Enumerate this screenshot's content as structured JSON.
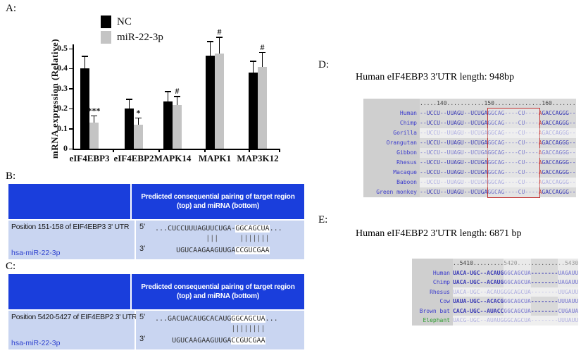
{
  "colors": {
    "table_header_blue": "#1a3edc",
    "table_body_blue": "#c9d5f1",
    "mir_link_blue": "#3144cf",
    "seq_blue": "#3b3bb5",
    "seq_red": "#c43333",
    "species_name_blue": "#3c3ccc",
    "elephant_green": "#2f9e2f",
    "bar_black": "#000000",
    "bar_gray": "#c4c4c4",
    "align_name_bg": "#cfcfcf",
    "align_seq_bg": "#d9d9d9"
  },
  "chart_data": {
    "type": "bar",
    "title": "",
    "xlabel": "",
    "ylabel": "mRNA expression (Relative)",
    "ylim": [
      0,
      0.5
    ],
    "yticks": [
      0,
      0.1,
      0.2,
      0.3,
      0.4,
      0.5
    ],
    "grid": false,
    "legend_position": "top-left-inside",
    "categories": [
      "eIF4EBP3",
      "eIF4EBP2",
      "MAPK14",
      "MAPK1",
      "MAP3K12"
    ],
    "series": [
      {
        "name": "NC",
        "color": "#000000",
        "values": [
          0.4,
          0.2,
          0.235,
          0.465,
          0.38
        ],
        "errors": [
          0.06,
          0.045,
          0.05,
          0.07,
          0.055
        ]
      },
      {
        "name": "miR-22-3p",
        "color": "#c4c4c4",
        "values": [
          0.13,
          0.12,
          0.22,
          0.475,
          0.41
        ],
        "errors": [
          0.032,
          0.033,
          0.04,
          0.08,
          0.07
        ]
      }
    ],
    "annotations": [
      "***",
      "*",
      "#",
      "#",
      "#"
    ]
  },
  "panelA": {
    "label": "A:"
  },
  "panelB": {
    "label": "B:",
    "header_line1": "Predicted consequential pairing of target region",
    "header_line2": "(top) and miRNA (bottom)",
    "row1": {
      "label": "Position 151-158 of EIF4EBP3 3' UTR",
      "prime": "5'",
      "seq_pre": "...CUCCUUUAGUUCUGA-",
      "seq_hl": "GGCAGCUA",
      "seq_post": "..."
    },
    "bars": "            |||     |||||||",
    "row2": {
      "label": "hsa-miR-22-3p",
      "prime": "3'",
      "seq_pre": "     UGUCAAGAAGUUGA",
      "seq_hl": "CCGUCGAA",
      "seq_post": ""
    }
  },
  "panelC": {
    "label": "C:",
    "header_line1": "Predicted consequential pairing of target region",
    "header_line2": "(top) and miRNA (bottom)",
    "row1": {
      "label": "Position 5420-5427 of EIF4EBP2 3' UTR",
      "prime": "5'",
      "seq_pre": "...GACUACAUGCACAUG",
      "seq_hl": "GGCAGCUA",
      "seq_post": "..."
    },
    "bars": "                  ||||||||",
    "row2": {
      "label": "hsa-miR-22-3p",
      "prime": "3'",
      "seq_pre": "    UGUCAAGAAGUUGA",
      "seq_hl": "CCGUCGAA",
      "seq_post": ""
    }
  },
  "panelD": {
    "label": "D:",
    "title": "Human eIF4EBP3 3'UTR length: 948bp",
    "ruler": ".....140...........150..............160.......",
    "seq": {
      "pre": "--UCCU--UUAGU--UCUGAGGCAG----CU----",
      "red": "A",
      "post": "GACCAGGG--"
    },
    "species": [
      {
        "name": "Human",
        "strength": "strong"
      },
      {
        "name": "Chimp",
        "strength": "strong"
      },
      {
        "name": "Gorilla",
        "strength": "faded"
      },
      {
        "name": "Orangutan",
        "strength": "strong"
      },
      {
        "name": "Gibbon",
        "strength": "medium"
      },
      {
        "name": "Rhesus",
        "strength": "strong"
      },
      {
        "name": "Macaque",
        "strength": "strong"
      },
      {
        "name": "Baboon",
        "strength": "faded"
      },
      {
        "name": "Green monkey",
        "strength": "strong"
      }
    ]
  },
  "panelE": {
    "label": "E:",
    "title": "Human eIF4EBP2 3'UTR length: 6871 bp",
    "ruler": "..5410.........5420..............5430",
    "species": [
      {
        "name": "Human",
        "seq": "UACA-UGC--ACAUGGGCAGCUA--------UAGAUU",
        "strength": "strong",
        "name_color": "blue"
      },
      {
        "name": "Chimp",
        "seq": "UACA-UGC--ACAUGGGCAGCUA--------UAGAUU",
        "strength": "strong",
        "name_color": "blue"
      },
      {
        "name": "Rhesus",
        "seq": "UACA-UGC--ACAUGGGCAGCUA--------UUGAUU",
        "strength": "faded",
        "name_color": "blue"
      },
      {
        "name": "Cow",
        "seq": "UAUA-UGC--ACACGGGCAGCUA--------UUUAUU",
        "strength": "strong",
        "name_color": "blue"
      },
      {
        "name": "Brown bat",
        "seq": "CACA-UGC--AUACCGGCAGCUA--------CUGAUA",
        "strength": "strong",
        "name_color": "blue"
      },
      {
        "name": "Elephant",
        "seq": "UACG-UGC--AUAUGGGCAGCUA--------UUUAUU",
        "strength": "faded",
        "name_color": "green"
      }
    ]
  }
}
